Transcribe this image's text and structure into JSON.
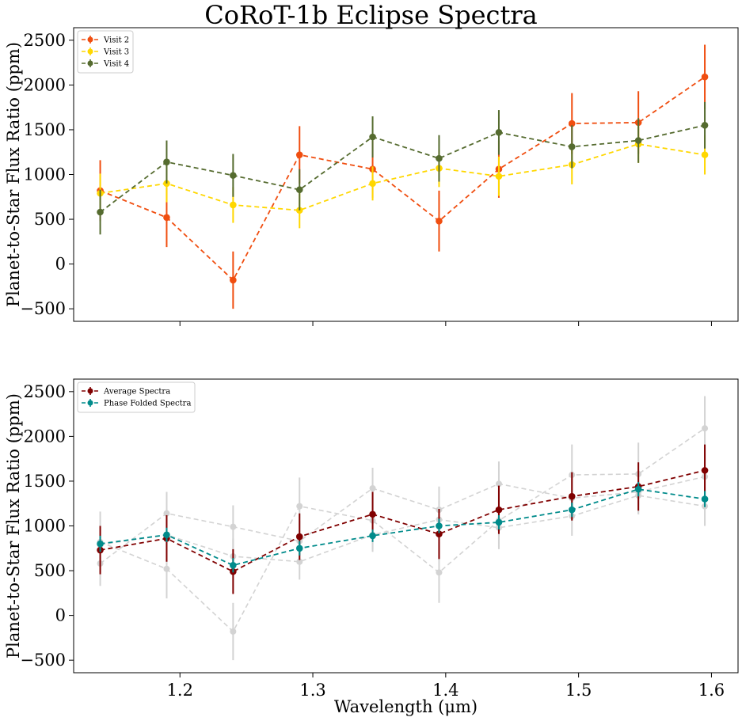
{
  "title": "CoRoT-1b Eclipse Spectra",
  "chart_data": [
    {
      "type": "line",
      "ylabel": "Planet-to-Star Flux Ratio (ppm)",
      "xlabel": "",
      "xlim": [
        1.12,
        1.62
      ],
      "ylim": [
        -640,
        2640
      ],
      "xticks": [
        1.2,
        1.3,
        1.4,
        1.5,
        1.6
      ],
      "xtick_labels_shown": false,
      "yticks": [
        -500,
        0,
        500,
        1000,
        1500,
        2000,
        2500
      ],
      "legend": "top-left",
      "x": [
        1.14,
        1.19,
        1.24,
        1.29,
        1.345,
        1.395,
        1.44,
        1.495,
        1.545,
        1.595
      ],
      "series": [
        {
          "name": "Visit 2",
          "color": "#f04e10",
          "values": [
            820,
            520,
            -180,
            1220,
            1060,
            480,
            1060,
            1570,
            1580,
            2090
          ],
          "errors": [
            340,
            330,
            320,
            320,
            320,
            340,
            320,
            340,
            350,
            360
          ]
        },
        {
          "name": "Visit 3",
          "color": "#ffd700",
          "values": [
            790,
            900,
            660,
            600,
            900,
            1070,
            980,
            1110,
            1340,
            1220
          ],
          "errors": [
            220,
            210,
            200,
            200,
            190,
            210,
            220,
            220,
            210,
            220
          ]
        },
        {
          "name": "Visit 4",
          "color": "#556b2f",
          "values": [
            580,
            1140,
            990,
            830,
            1420,
            1180,
            1470,
            1310,
            1380,
            1550
          ],
          "errors": [
            250,
            240,
            240,
            230,
            230,
            260,
            250,
            240,
            250,
            260
          ]
        }
      ]
    },
    {
      "type": "line",
      "ylabel": "Planet-to-Star Flux Ratio (ppm)",
      "xlabel": "Wavelength (μm)",
      "xlim": [
        1.12,
        1.62
      ],
      "ylim": [
        -640,
        2640
      ],
      "xticks": [
        1.2,
        1.3,
        1.4,
        1.5,
        1.6
      ],
      "xtick_labels": [
        "1.2",
        "1.3",
        "1.4",
        "1.5",
        "1.6"
      ],
      "yticks": [
        -500,
        0,
        500,
        1000,
        1500,
        2000,
        2500
      ],
      "legend": "top-left",
      "x": [
        1.14,
        1.19,
        1.24,
        1.29,
        1.345,
        1.395,
        1.44,
        1.495,
        1.545,
        1.595
      ],
      "background_series_color": "#d3d3d3",
      "series": [
        {
          "name": "Average Spectra",
          "color": "#800000",
          "values": [
            730,
            860,
            490,
            880,
            1130,
            910,
            1180,
            1330,
            1440,
            1620
          ],
          "errors": [
            270,
            260,
            250,
            260,
            250,
            280,
            270,
            270,
            270,
            290
          ]
        },
        {
          "name": "Phase Folded Spectra",
          "color": "#008b8b",
          "values": [
            800,
            900,
            560,
            750,
            890,
            1000,
            1040,
            1180,
            1410,
            1300
          ],
          "errors": [
            90,
            80,
            80,
            80,
            70,
            80,
            80,
            80,
            80,
            90
          ]
        }
      ]
    }
  ]
}
